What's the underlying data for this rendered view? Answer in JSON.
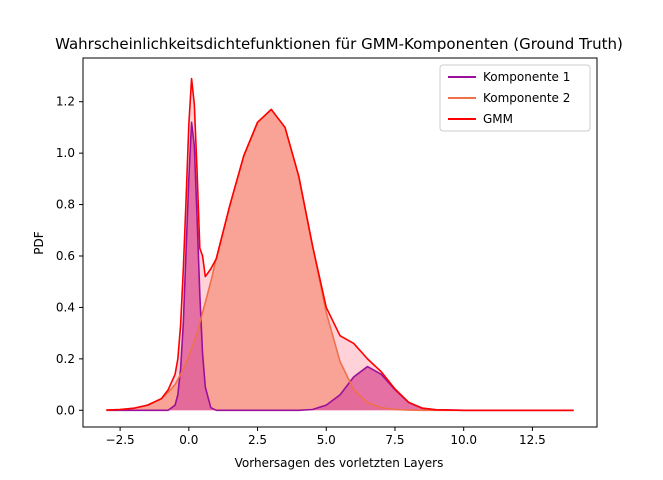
{
  "chart_data": {
    "type": "area",
    "title": "Wahrscheinlichkeitsdichtefunktionen für GMM-Komponenten (Ground Truth)",
    "xlabel": "Vorhersagen des vorletzten Layers",
    "ylabel": "PDF",
    "xlim": [
      -3.85,
      14.85
    ],
    "ylim": [
      -0.065,
      1.37
    ],
    "xticks": [
      -2.5,
      0.0,
      2.5,
      5.0,
      7.5,
      10.0,
      12.5
    ],
    "xtick_labels": [
      "−2.5",
      "0.0",
      "2.5",
      "5.0",
      "7.5",
      "10.0",
      "12.5"
    ],
    "yticks": [
      0.0,
      0.2,
      0.4,
      0.6,
      0.8,
      1.0,
      1.2
    ],
    "ytick_labels": [
      "0.0",
      "0.2",
      "0.4",
      "0.6",
      "0.8",
      "1.0",
      "1.2"
    ],
    "grid": false,
    "legend_position": "top-right",
    "x": [
      -3.0,
      -2.5,
      -2.0,
      -1.5,
      -1.0,
      -0.75,
      -0.5,
      -0.4,
      -0.3,
      -0.2,
      -0.1,
      0.0,
      0.1,
      0.2,
      0.3,
      0.4,
      0.5,
      0.6,
      0.8,
      1.0,
      1.5,
      2.0,
      2.5,
      3.0,
      3.5,
      4.0,
      4.5,
      5.0,
      5.5,
      6.0,
      6.5,
      7.0,
      7.5,
      8.0,
      8.5,
      9.0,
      10.0,
      11.0,
      12.0,
      13.0,
      14.0
    ],
    "series": [
      {
        "name": "Komponente 1",
        "color": "#9b109b",
        "fill": "#e0609a",
        "values": [
          0.0,
          0.0,
          0.0,
          0.0,
          0.0,
          0.0,
          0.02,
          0.06,
          0.16,
          0.34,
          0.62,
          0.9,
          1.12,
          1.03,
          0.75,
          0.45,
          0.22,
          0.09,
          0.01,
          0.0,
          0.0,
          0.0,
          0.0,
          0.0,
          0.0,
          0.0,
          0.003,
          0.02,
          0.06,
          0.13,
          0.17,
          0.14,
          0.08,
          0.03,
          0.008,
          0.002,
          0.0,
          0.0,
          0.0,
          0.0,
          0.0
        ]
      },
      {
        "name": "Komponente 2",
        "color": "#f0704a",
        "fill": "#f7937f",
        "values": [
          0.001,
          0.003,
          0.008,
          0.02,
          0.045,
          0.07,
          0.1,
          0.12,
          0.14,
          0.16,
          0.185,
          0.21,
          0.24,
          0.27,
          0.3,
          0.34,
          0.38,
          0.42,
          0.5,
          0.59,
          0.8,
          0.99,
          1.12,
          1.17,
          1.1,
          0.91,
          0.64,
          0.38,
          0.19,
          0.08,
          0.03,
          0.01,
          0.003,
          0.001,
          0.0,
          0.0,
          0.0,
          0.0,
          0.0,
          0.0,
          0.0
        ]
      },
      {
        "name": "GMM",
        "color": "#ff0000",
        "fill": "#ffb3c0",
        "values": [
          0.001,
          0.003,
          0.008,
          0.02,
          0.045,
          0.08,
          0.14,
          0.2,
          0.33,
          0.55,
          0.82,
          1.11,
          1.29,
          1.19,
          0.93,
          0.63,
          0.6,
          0.52,
          0.55,
          0.59,
          0.8,
          0.99,
          1.12,
          1.17,
          1.1,
          0.91,
          0.64,
          0.4,
          0.29,
          0.26,
          0.2,
          0.15,
          0.083,
          0.031,
          0.008,
          0.002,
          0.0,
          0.0,
          0.0,
          0.0,
          0.0
        ]
      }
    ]
  }
}
